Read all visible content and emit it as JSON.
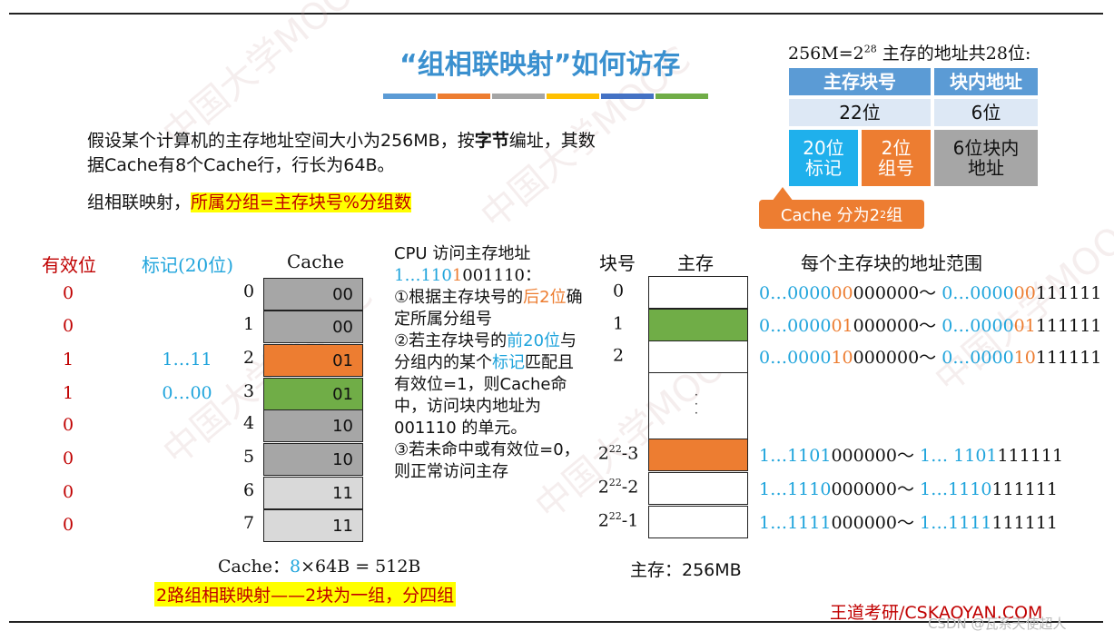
{
  "title": "“组相联映射”如何访存",
  "title_bar_colors": [
    "#5b9bd5",
    "#ed7d31",
    "#a5a5a5",
    "#ffc000",
    "#4472c4",
    "#70ad47"
  ],
  "intro": {
    "part1": "假设某个计算机的主存地址空间大小为256MB，按",
    "bold": "字节",
    "part2": "编址，其数据Cache有8个Cache行，行长为64B。"
  },
  "rule": {
    "prefix": "组相联映射，",
    "highlight": "所属分组=主存块号%分组数"
  },
  "address": {
    "heading_prefix": "256M=2",
    "heading_exp": "28",
    "heading_suffix": " 主存的地址共28位:",
    "col1": "主存块号",
    "col2": "块内地址",
    "bits1": "22位",
    "bits2": "6位",
    "tag": "20位\n标记",
    "group": "2位\n组号",
    "offset": "6位块内\n地址",
    "callout_prefix": "Cache 分为2",
    "callout_exp": "2",
    "callout_suffix": "组"
  },
  "cache": {
    "valid_header": "有效位",
    "tag_header": "标记(20位)",
    "cache_header": "Cache",
    "rows": [
      {
        "idx": "0",
        "valid": "0",
        "tag": "",
        "group": "00"
      },
      {
        "idx": "1",
        "valid": "0",
        "tag": "",
        "group": "00"
      },
      {
        "idx": "2",
        "valid": "1",
        "tag": "1…11",
        "group": "01"
      },
      {
        "idx": "3",
        "valid": "1",
        "tag": "0…00",
        "group": "01"
      },
      {
        "idx": "4",
        "valid": "0",
        "tag": "",
        "group": "10"
      },
      {
        "idx": "5",
        "valid": "0",
        "tag": "",
        "group": "10"
      },
      {
        "idx": "6",
        "valid": "0",
        "tag": "",
        "group": "11"
      },
      {
        "idx": "7",
        "valid": "0",
        "tag": "",
        "group": "11"
      }
    ],
    "summary_prefix": "Cache：",
    "summary_count": "8",
    "summary_suffix": "×64B = 512B",
    "banner": "2路组相联映射——2块为一组，分四组"
  },
  "explain": {
    "line1": "CPU 访问主存地址",
    "addr_a": "1…110",
    "addr_b": "1",
    "addr_c": "001110",
    "addr_d": "：",
    "step1a": "①根据主存块号的",
    "step1b": "后",
    "step1c": "2位",
    "step1d": "确定所属分组号",
    "step2a": "②若主存块号的",
    "step2b": "前20位",
    "step2c": "与分组内的某个",
    "step2d": "标记",
    "step2e": "匹配且有效位=1，则Cache命中，访问块内地址为 001110 的单元。",
    "step3": "③若未命中或有效位=0，则正常访问主存"
  },
  "memory": {
    "idx_header": "块号",
    "mem_header": "主存",
    "range_header": "每个主存块的地址范围",
    "blocks": [
      {
        "label": "0",
        "exp": "",
        "suffix": ""
      },
      {
        "label": "1",
        "exp": "",
        "suffix": ""
      },
      {
        "label": "2",
        "exp": "",
        "suffix": ""
      },
      {
        "label": "2",
        "exp": "22",
        "suffix": "-3"
      },
      {
        "label": "2",
        "exp": "22",
        "suffix": "-2"
      },
      {
        "label": "2",
        "exp": "22",
        "suffix": "-1"
      }
    ],
    "ranges": [
      {
        "a1": "0…0000",
        "a2": "00",
        "a3": "000000～ ",
        "b1": "0…0000",
        "b2": "00",
        "b3": "111111"
      },
      {
        "a1": "0…0000",
        "a2": "01",
        "a3": "000000～ ",
        "b1": "0…0000",
        "b2": "01",
        "b3": "111111"
      },
      {
        "a1": "0…0000",
        "a2": "10",
        "a3": "000000～ ",
        "b1": "0…0000",
        "b2": "10",
        "b3": "111111"
      },
      {
        "a1": "1…1101",
        "a2": "",
        "a3": "000000～ ",
        "b1": "1… 1101",
        "b2": "",
        "b3": "111111"
      },
      {
        "a1": "1…1110",
        "a2": "",
        "a3": "000000～ ",
        "b1": "1…1110",
        "b2": "",
        "b3": "111111"
      },
      {
        "a1": "1…1111",
        "a2": "",
        "a3": "000000～ ",
        "b1": "1…1111",
        "b2": "",
        "b3": "111111"
      }
    ],
    "summary": "主存：256MB"
  },
  "footer": {
    "brand": "王道考研/CSKAOYAN.COM",
    "watermark": "CSDN @瓦系天使超人"
  },
  "colors": {
    "gray": "#a6a6a6",
    "light_gray": "#d9d9d9",
    "orange": "#ed7d31",
    "green": "#70ad47",
    "blue_header": "#5b9bd5",
    "light_blue": "#dde8f5",
    "cyan": "#1fb0ec"
  }
}
